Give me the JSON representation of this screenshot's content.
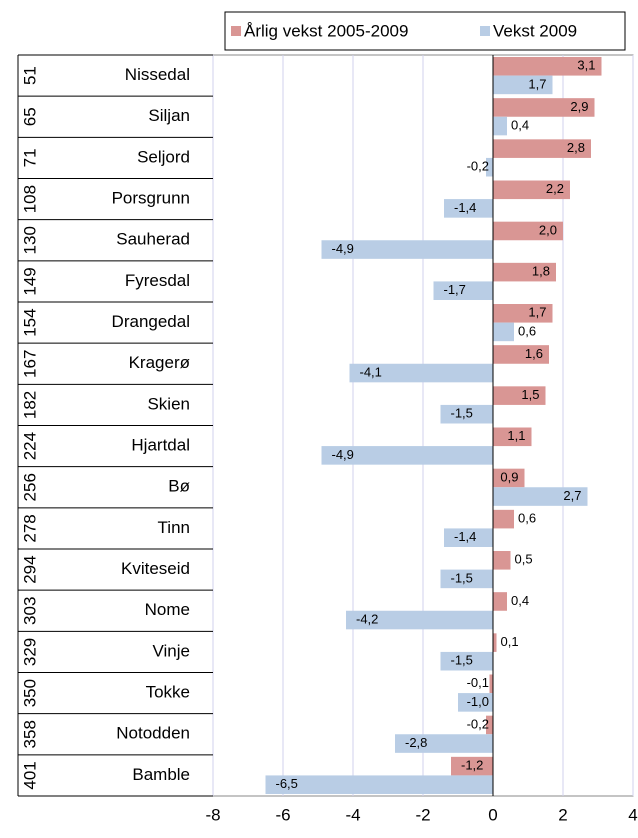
{
  "chart_data": {
    "type": "barh",
    "categories": [
      "Nissedal",
      "Siljan",
      "Seljord",
      "Porsgrunn",
      "Sauherad",
      "Fyresdal",
      "Drangedal",
      "Kragerø",
      "Skien",
      "Hjartdal",
      "Bø",
      "Tinn",
      "Kviteseid",
      "Nome",
      "Vinje",
      "Tokke",
      "Notodden",
      "Bamble"
    ],
    "ranks": [
      51,
      65,
      71,
      108,
      130,
      149,
      154,
      167,
      182,
      224,
      256,
      278,
      294,
      303,
      329,
      350,
      358,
      401
    ],
    "series": [
      {
        "name": "Årlig vekst 2005-2009",
        "color": "#d99694",
        "values": [
          3.1,
          2.9,
          2.8,
          2.2,
          2.0,
          1.8,
          1.7,
          1.6,
          1.5,
          1.1,
          0.9,
          0.6,
          0.5,
          0.4,
          0.1,
          -0.1,
          -0.2,
          -1.2
        ],
        "value_labels": [
          "3,1",
          "2,9",
          "2,8",
          "2,2",
          "2,0",
          "1,8",
          "1,7",
          "1,6",
          "1,5",
          "1,1",
          "0,9",
          "0,6",
          "0,5",
          "0,4",
          "0,1",
          "-0,1",
          "-0,2",
          "-1,2"
        ]
      },
      {
        "name": "Vekst 2009",
        "color": "#b9cde5",
        "values": [
          1.7,
          0.4,
          -0.2,
          -1.4,
          -4.9,
          -1.7,
          0.6,
          -4.1,
          -1.5,
          -4.9,
          2.7,
          -1.4,
          -1.5,
          -4.2,
          -1.5,
          -1.0,
          -2.8,
          -6.5
        ],
        "value_labels": [
          "1,7",
          "0,4",
          "-0,2",
          "-1,4",
          "-4,9",
          "-1,7",
          "0,6",
          "-4,1",
          "-1,5",
          "-4,9",
          "2,7",
          "-1,4",
          "-1,5",
          "-4,2",
          "-1,5",
          "-1,0",
          "-2,8",
          "-6,5"
        ]
      }
    ],
    "xlim": [
      -8,
      4
    ],
    "xticks": [
      -8,
      -6,
      -4,
      -2,
      0,
      2,
      4
    ],
    "grid": true,
    "legend": "top"
  }
}
